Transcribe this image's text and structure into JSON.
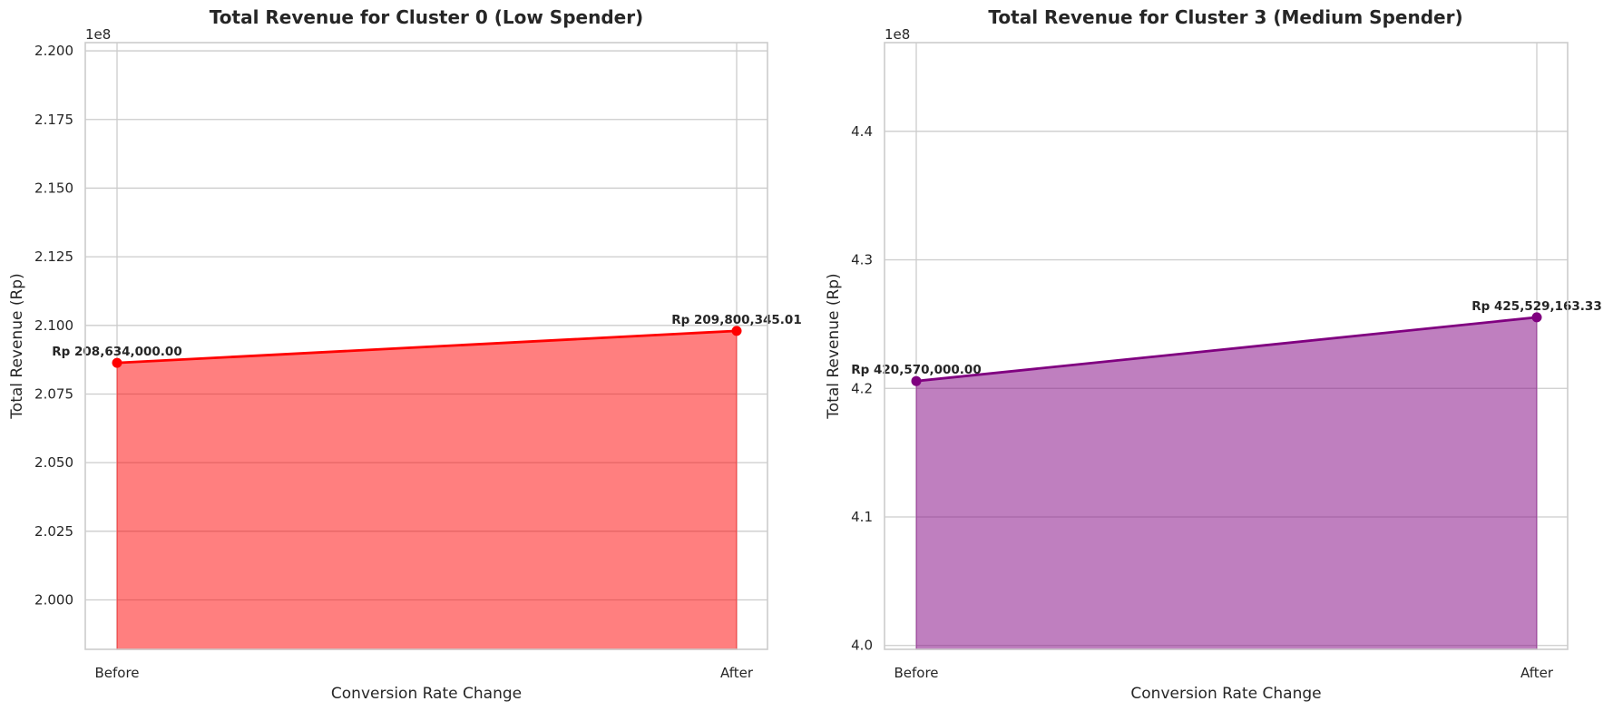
{
  "chart_data": [
    {
      "type": "area",
      "title": "Total Revenue for Cluster 0 (Low Spender)",
      "xlabel": "Conversion Rate Change",
      "ylabel": "Total Revenue (Rp)",
      "offset_text": "1e8",
      "categories": [
        "Before",
        "After"
      ],
      "values": [
        208634000.0,
        209800345.01
      ],
      "data_labels": [
        "Rp 208,634,000.00",
        "Rp 209,800,345.01"
      ],
      "ylim": [
        198200000,
        220300000
      ],
      "yticks": [
        200000000,
        202500000,
        205000000,
        207500000,
        210000000,
        212500000,
        215000000,
        217500000,
        220000000
      ],
      "ytick_labels": [
        "2.000",
        "2.025",
        "2.050",
        "2.075",
        "2.100",
        "2.125",
        "2.150",
        "2.175",
        "2.200"
      ],
      "line_color": "#ff0000",
      "fill_color": "#ff0000",
      "fill_opacity": 0.5,
      "grid": true
    },
    {
      "type": "area",
      "title": "Total Revenue for Cluster 3 (Medium Spender)",
      "xlabel": "Conversion Rate Change",
      "ylabel": "Total Revenue (Rp)",
      "offset_text": "1e8",
      "categories": [
        "Before",
        "After"
      ],
      "values": [
        420570000.0,
        425529163.33
      ],
      "data_labels": [
        "Rp 420,570,000.00",
        "Rp 425,529,163.33"
      ],
      "ylim": [
        399700000,
        446900000
      ],
      "yticks": [
        400000000,
        410000000,
        420000000,
        430000000,
        440000000
      ],
      "ytick_labels": [
        "4.0",
        "4.1",
        "4.2",
        "4.3",
        "4.4"
      ],
      "line_color": "#800080",
      "fill_color": "#800080",
      "fill_opacity": 0.5,
      "grid": true
    }
  ]
}
